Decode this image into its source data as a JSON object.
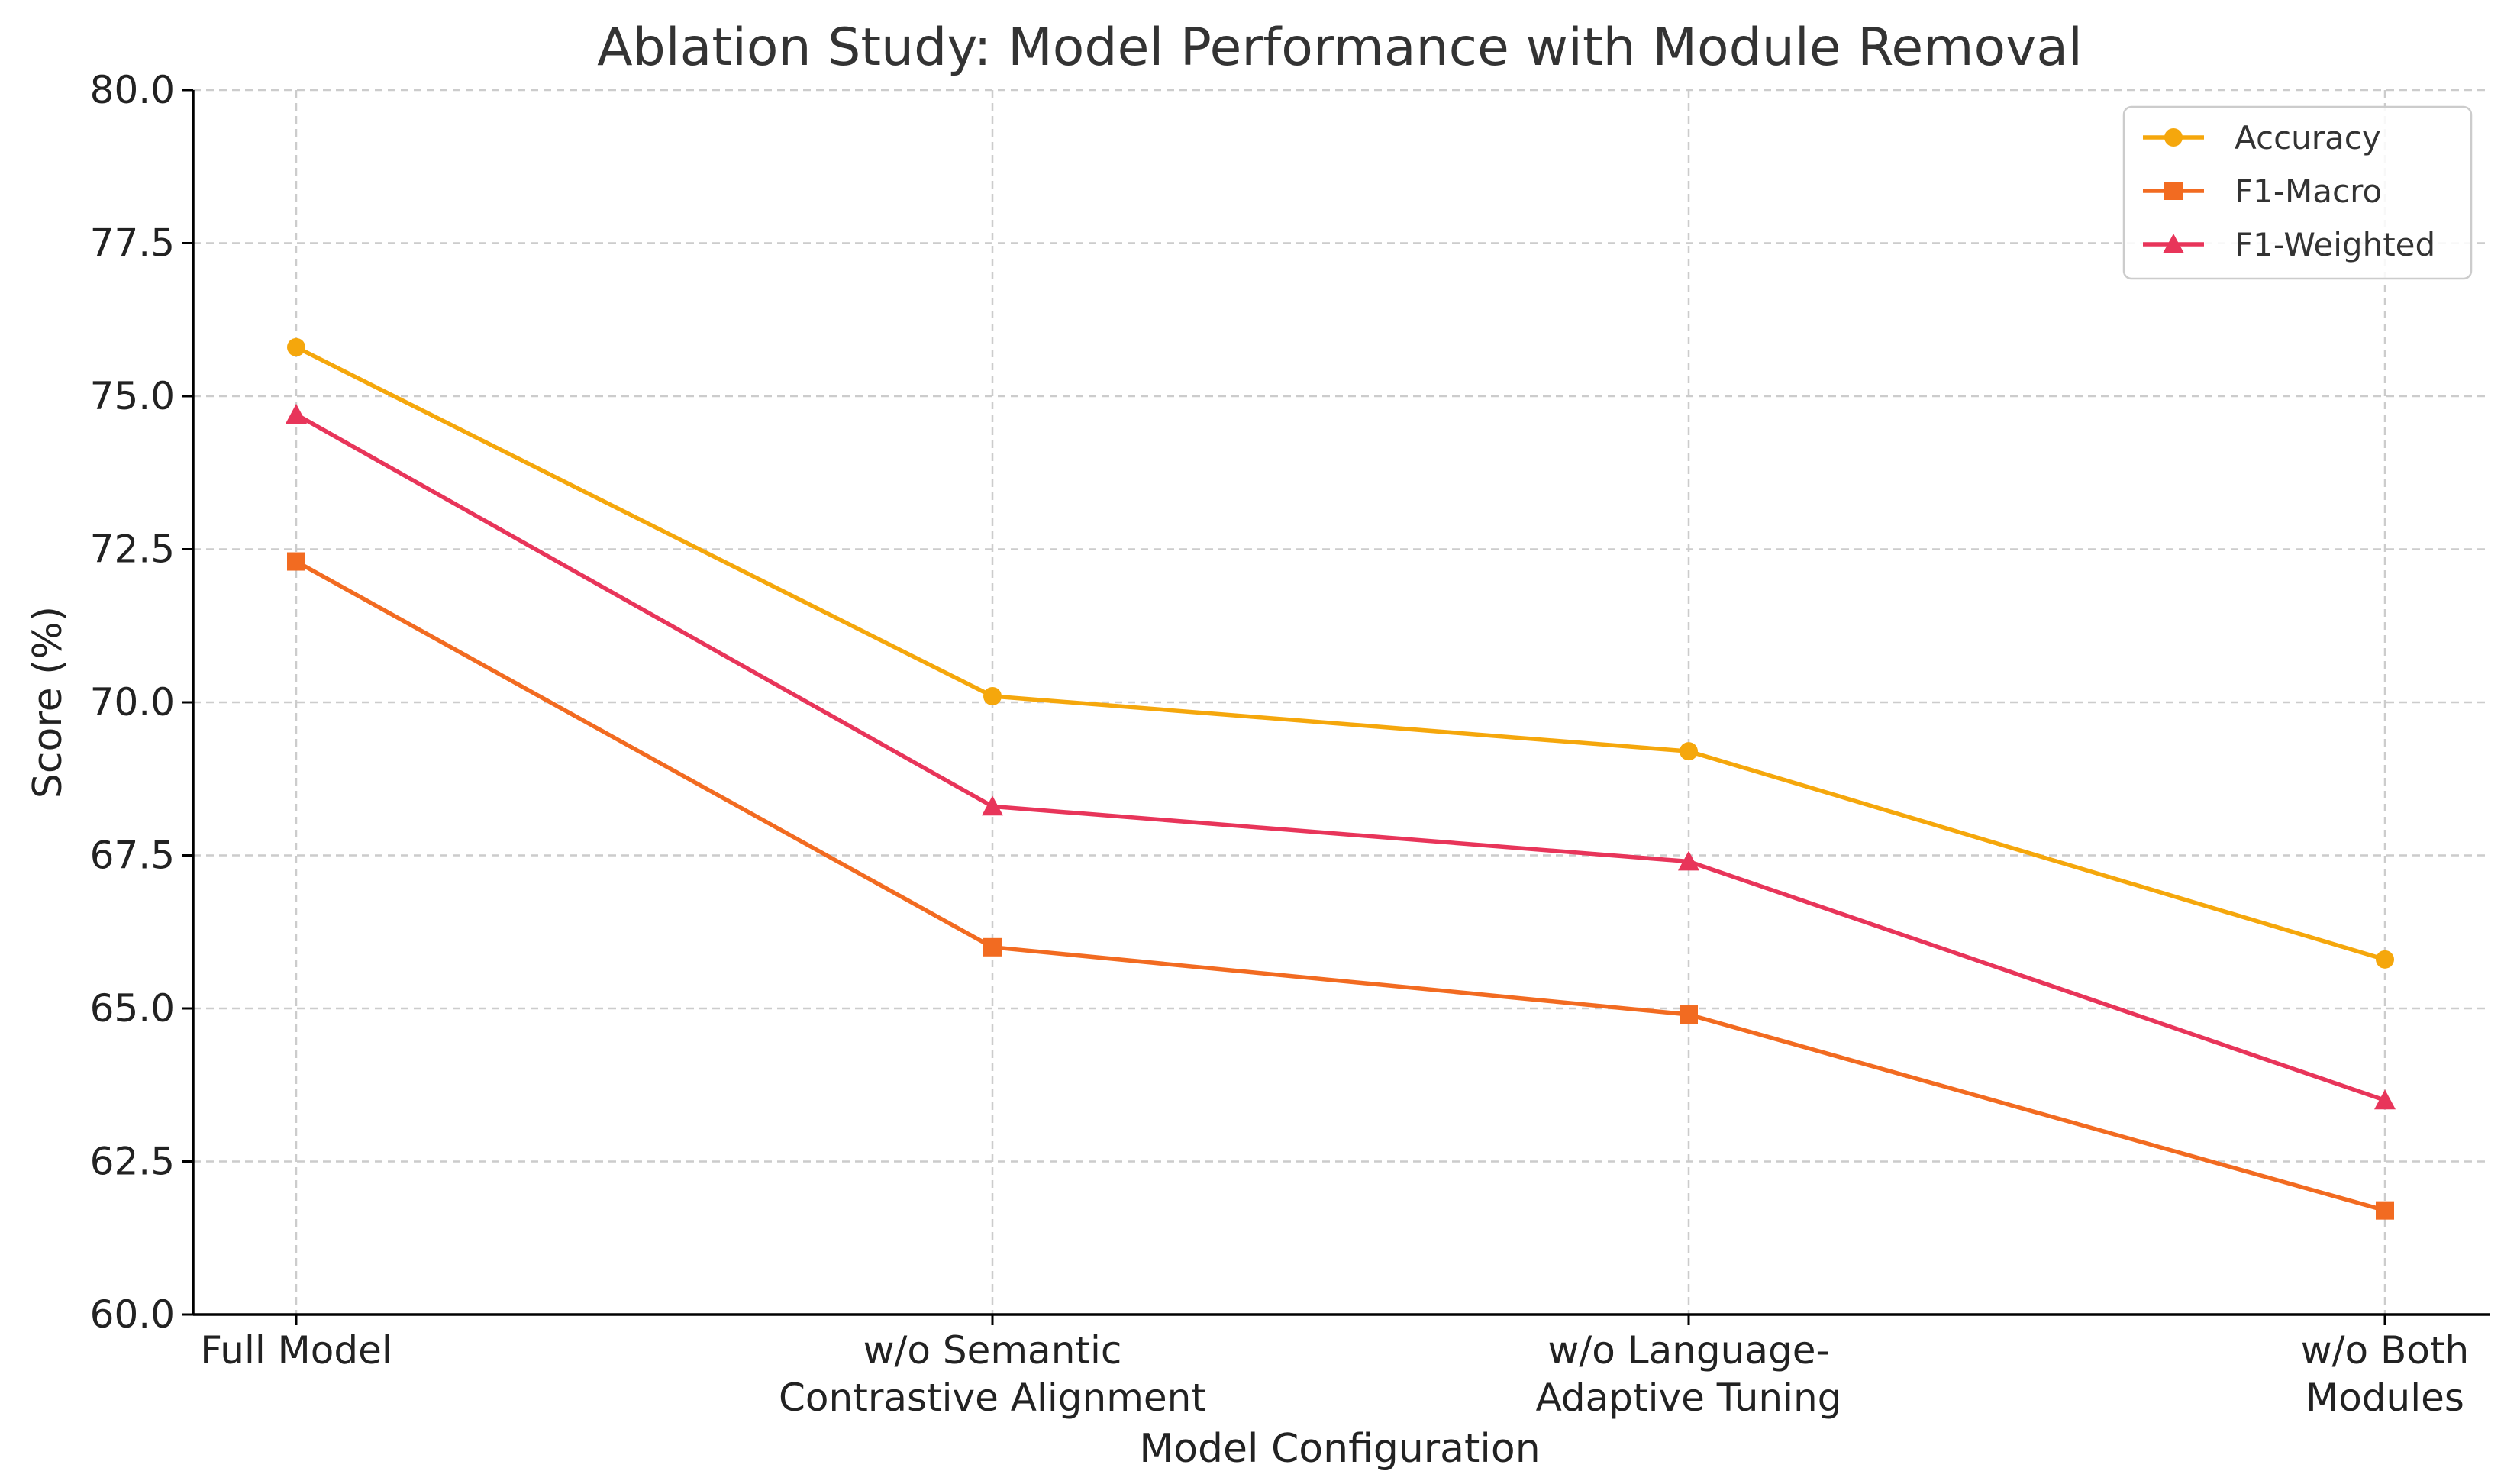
{
  "chart_data": {
    "type": "line",
    "title": "Ablation Study: Model Performance with Module Removal",
    "xlabel": "Model Configuration",
    "ylabel": "Score (%)",
    "ylim": [
      60.0,
      80.0
    ],
    "yticks": [
      "60.0",
      "62.5",
      "65.0",
      "67.5",
      "70.0",
      "72.5",
      "75.0",
      "77.5",
      "80.0"
    ],
    "categories": [
      [
        "Full Model"
      ],
      [
        "w/o Semantic",
        "Contrastive Alignment"
      ],
      [
        "w/o Language-",
        "Adaptive Tuning"
      ],
      [
        "w/o Both",
        "Modules"
      ]
    ],
    "grid": true,
    "legend_position": "top-right",
    "series": [
      {
        "name": "Accuracy",
        "values": [
          75.8,
          70.1,
          69.2,
          65.8
        ],
        "color": "#f5a70c",
        "marker": "circle"
      },
      {
        "name": "F1-Macro",
        "values": [
          72.3,
          66.0,
          64.9,
          61.7
        ],
        "color": "#f26b21",
        "marker": "square"
      },
      {
        "name": "F1-Weighted",
        "values": [
          74.7,
          68.3,
          67.4,
          63.5
        ],
        "color": "#e8355a",
        "marker": "triangle"
      }
    ]
  }
}
